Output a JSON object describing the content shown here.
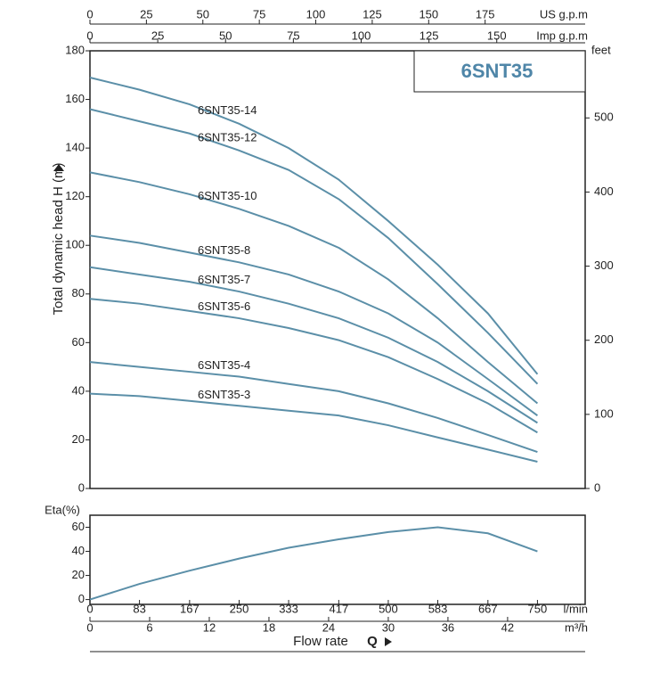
{
  "chart_data": [
    {
      "type": "line",
      "title": "6SNT35",
      "y_label": "Total dynamic head H (m)",
      "y2_label": "feet",
      "x": [
        0,
        83,
        167,
        250,
        333,
        417,
        500,
        583,
        667,
        750
      ],
      "xlim": [
        0,
        830
      ],
      "ylim": [
        0,
        180
      ],
      "yticks": [
        0,
        20,
        40,
        60,
        80,
        100,
        120,
        140,
        160,
        180
      ],
      "y2lim": [
        0,
        590.55
      ],
      "y2ticks": [
        0,
        100,
        200,
        300,
        400,
        500
      ],
      "top_axes": [
        {
          "label": "US g.p.m",
          "lim": [
            0,
            219.3
          ],
          "ticks": [
            0,
            25,
            50,
            75,
            100,
            125,
            150,
            175
          ]
        },
        {
          "label": "Imp g.p.m",
          "lim": [
            0,
            182.6
          ],
          "ticks": [
            0,
            25,
            50,
            75,
            100,
            125,
            150
          ]
        }
      ],
      "series": [
        {
          "name": "6SNT35-14",
          "color": "#5b8fa8",
          "values": [
            169,
            164,
            158,
            150,
            140,
            127,
            110,
            92,
            72,
            47
          ]
        },
        {
          "name": "6SNT35-12",
          "color": "#5b8fa8",
          "values": [
            156,
            151,
            146,
            139,
            131,
            119,
            103,
            84,
            64,
            43
          ]
        },
        {
          "name": "6SNT35-10",
          "color": "#5b8fa8",
          "values": [
            130,
            126,
            121,
            115,
            108,
            99,
            86,
            70,
            52,
            35
          ]
        },
        {
          "name": "6SNT35-8",
          "color": "#5b8fa8",
          "values": [
            104,
            101,
            97,
            93,
            88,
            81,
            72,
            60,
            45,
            30
          ]
        },
        {
          "name": "6SNT35-7",
          "color": "#5b8fa8",
          "values": [
            91,
            88,
            85,
            81,
            76,
            70,
            62,
            52,
            40,
            27
          ]
        },
        {
          "name": "6SNT35-6",
          "color": "#5b8fa8",
          "values": [
            78,
            76,
            73,
            70,
            66,
            61,
            54,
            45,
            35,
            23
          ]
        },
        {
          "name": "6SNT35-4",
          "color": "#5b8fa8",
          "values": [
            52,
            50,
            48,
            46,
            43,
            40,
            35,
            29,
            22,
            15
          ]
        },
        {
          "name": "6SNT35-3",
          "color": "#5b8fa8",
          "values": [
            39,
            38,
            36,
            34,
            32,
            30,
            26,
            21,
            16,
            11
          ]
        }
      ]
    },
    {
      "type": "line",
      "y_label": "Eta(%)",
      "x_label": "Flow rate",
      "x_symbol": "Q",
      "x": [
        0,
        83,
        167,
        250,
        333,
        417,
        500,
        583,
        667,
        750
      ],
      "xlim": [
        0,
        830
      ],
      "ylim": [
        -4,
        70
      ],
      "yticks": [
        0,
        20,
        40,
        60
      ],
      "bottom_axes": [
        {
          "label": "l/min",
          "lim": [
            0,
            830
          ],
          "ticks": [
            0,
            83,
            167,
            250,
            333,
            417,
            500,
            583,
            667,
            750
          ]
        },
        {
          "label": "m³/h",
          "lim": [
            0,
            49.8
          ],
          "ticks": [
            0,
            6,
            12,
            18,
            24,
            30,
            36,
            42
          ]
        }
      ],
      "series": [
        {
          "color": "#5b8fa8",
          "values": [
            0,
            13,
            24,
            34,
            43,
            50,
            56,
            60,
            55,
            40
          ]
        }
      ]
    }
  ]
}
